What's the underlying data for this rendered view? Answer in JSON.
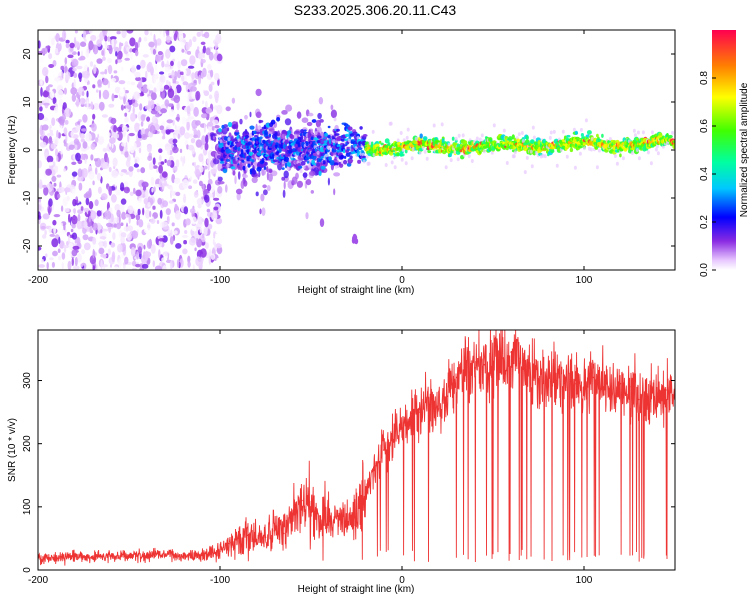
{
  "figure": {
    "title": "S233.2025.306.20.11.C43"
  },
  "chart_data": [
    {
      "type": "heatmap",
      "xlabel": "Height of straight line (km)",
      "ylabel": "Frequency (Hz)",
      "xlim": [
        -200,
        150
      ],
      "ylim": [
        -25,
        25
      ],
      "xticks": [
        -200,
        -100,
        0,
        100
      ],
      "yticks": [
        20,
        10,
        0,
        -10,
        -20
      ],
      "colorbar": {
        "label": "Normalized spectral amplitude",
        "range": [
          0,
          1
        ],
        "ticks": [
          0.0,
          0.2,
          0.4,
          0.6,
          0.8
        ]
      },
      "features": [
        {
          "label": "noise cloud",
          "x_range": [
            -200,
            -100
          ],
          "y_range": [
            -25,
            25
          ],
          "amplitude": 0.15
        },
        {
          "label": "tracked signal",
          "x_range": [
            -100,
            150
          ],
          "center_frequency_start": 0,
          "center_frequency_end": 1.5,
          "amplitude_peak": 1.0
        },
        {
          "label": "isolated blip",
          "x": -26,
          "y": -18,
          "amplitude": 0.1
        }
      ]
    },
    {
      "type": "line",
      "xlabel": "Height of straight line (km)",
      "ylabel": "SNR (10 * v/v)",
      "xlim": [
        -200,
        150
      ],
      "ylim": [
        0,
        380
      ],
      "xticks": [
        -200,
        -100,
        0,
        100
      ],
      "yticks": [
        0,
        100,
        200,
        300
      ],
      "series": [
        {
          "name": "SNR",
          "color": "#ee3333",
          "x": [
            -200,
            -190,
            -180,
            -170,
            -160,
            -150,
            -140,
            -130,
            -120,
            -110,
            -100,
            -95,
            -90,
            -85,
            -80,
            -75,
            -70,
            -65,
            -60,
            -55,
            -50,
            -45,
            -40,
            -35,
            -30,
            -25,
            -20,
            -15,
            -10,
            -5,
            0,
            5,
            10,
            15,
            20,
            25,
            30,
            35,
            40,
            45,
            50,
            55,
            60,
            65,
            70,
            75,
            80,
            85,
            90,
            95,
            100,
            105,
            110,
            115,
            120,
            125,
            130,
            135,
            140,
            145,
            150
          ],
          "values": [
            18,
            20,
            22,
            21,
            23,
            22,
            24,
            25,
            22,
            24,
            30,
            42,
            50,
            55,
            48,
            52,
            62,
            58,
            90,
            110,
            100,
            85,
            80,
            70,
            75,
            90,
            120,
            165,
            190,
            205,
            225,
            248,
            250,
            262,
            255,
            275,
            305,
            315,
            320,
            325,
            330,
            335,
            345,
            335,
            320,
            300,
            290,
            300,
            285,
            295,
            290,
            305,
            300,
            285,
            295,
            290,
            270,
            275,
            280,
            285,
            280
          ]
        }
      ]
    }
  ]
}
